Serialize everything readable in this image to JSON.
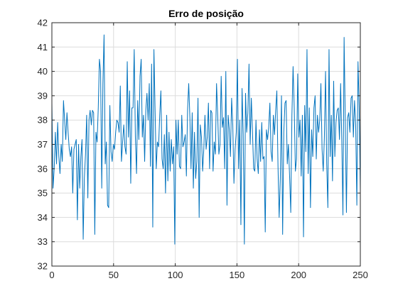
{
  "chart_data": {
    "type": "line",
    "title": "Erro de posição",
    "xlabel": "",
    "ylabel": "",
    "xlim": [
      0,
      250
    ],
    "ylim": [
      32,
      42
    ],
    "xticks": [
      0,
      50,
      100,
      150,
      200,
      250
    ],
    "yticks": [
      32,
      33,
      34,
      35,
      36,
      37,
      38,
      39,
      40,
      41,
      42
    ],
    "grid": true,
    "color": "#0072BD",
    "series": [
      {
        "y": [
          38.7,
          35.2,
          36.0,
          37.5,
          36.2,
          37.9,
          36.5,
          35.8,
          37.0,
          36.3,
          38.8,
          38.0,
          37.2,
          38.3,
          37.5,
          36.8,
          36.5,
          36.9,
          35.0,
          36.8,
          37.0,
          37.2,
          33.9,
          37.0,
          35.2,
          36.5,
          37.2,
          33.1,
          35.6,
          36.6,
          38.2,
          34.8,
          38.0,
          38.4,
          37.8,
          38.4,
          38.3,
          33.3,
          37.5,
          37.1,
          38.5,
          40.5,
          40.0,
          35.2,
          39.5,
          41.5,
          36.2,
          37.1,
          34.5,
          34.4,
          38.6,
          36.7,
          36.3,
          37.0,
          36.8,
          37.5,
          38.0,
          37.9,
          37.5,
          39.4,
          36.3,
          37.1,
          37.8,
          36.9,
          36.6,
          40.4,
          37.3,
          39.2,
          35.4,
          38.5,
          38.5,
          40.9,
          37.3,
          35.8,
          38.8,
          37.2,
          39.8,
          40.5,
          37.3,
          38.2,
          36.3,
          38.4,
          39.1,
          38.0,
          39.5,
          36.1,
          40.3,
          33.6,
          40.9,
          38.4,
          36.0,
          37.1,
          36.9,
          38.2,
          39.2,
          36.4,
          36.0,
          37.4,
          35.0,
          38.2,
          35.5,
          37.5,
          35.9,
          37.2,
          36.2,
          36.9,
          32.9,
          38.0,
          36.6,
          38.0,
          36.1,
          36.0,
          38.2,
          36.9,
          37.1,
          37.4,
          35.7,
          38.4,
          39.5,
          38.1,
          36.0,
          38.3,
          35.2,
          37.5,
          35.6,
          36.3,
          38.9,
          34.0,
          37.8,
          37.3,
          35.9,
          36.8,
          38.2,
          36.8,
          37.3,
          38.7,
          36.0,
          38.4,
          38.3,
          35.9,
          37.1,
          36.6,
          39.5,
          38.2,
          36.6,
          37.0,
          39.8,
          37.7,
          38.1,
          36.0,
          40.0,
          34.5,
          38.2,
          37.6,
          36.5,
          38.9,
          37.8,
          35.4,
          36.8,
          37.5,
          40.5,
          36.0,
          38.0,
          33.7,
          39.3,
          37.4,
          32.9,
          39.1,
          37.5,
          38.3,
          40.3,
          37.0,
          38.9,
          37.5,
          36.0,
          35.9,
          38.0,
          36.4,
          35.8,
          37.6,
          36.3,
          37.9,
          36.4,
          36.5,
          33.4,
          37.6,
          37.2,
          37.7,
          38.7,
          36.7,
          36.3,
          38.2,
          37.4,
          38.4,
          39.2,
          36.1,
          34.0,
          35.6,
          39.0,
          33.3,
          37.5,
          38.7,
          38.8,
          36.2,
          37.0,
          35.7,
          34.2,
          38.2,
          40.2,
          38.5,
          35.9,
          36.4,
          39.9,
          37.3,
          38.0,
          35.7,
          38.2,
          33.2,
          38.6,
          36.7,
          40.9,
          35.8,
          38.5,
          34.4,
          37.6,
          36.5,
          38.5,
          39.0,
          36.4,
          38.2,
          37.5,
          38.0,
          39.5,
          36.8,
          35.9,
          37.3,
          40.0,
          36.2,
          34.4,
          40.9,
          36.5,
          38.2,
          35.5,
          39.6,
          36.5,
          37.9,
          38.4,
          38.5,
          37.2,
          39.5,
          37.2,
          34.1,
          41.4,
          38.0,
          34.2,
          38.1,
          38.3,
          37.5,
          38.9,
          39.0,
          37.3,
          38.8,
          37.8,
          34.5,
          40.4,
          38.5,
          35.1
        ]
      }
    ]
  }
}
